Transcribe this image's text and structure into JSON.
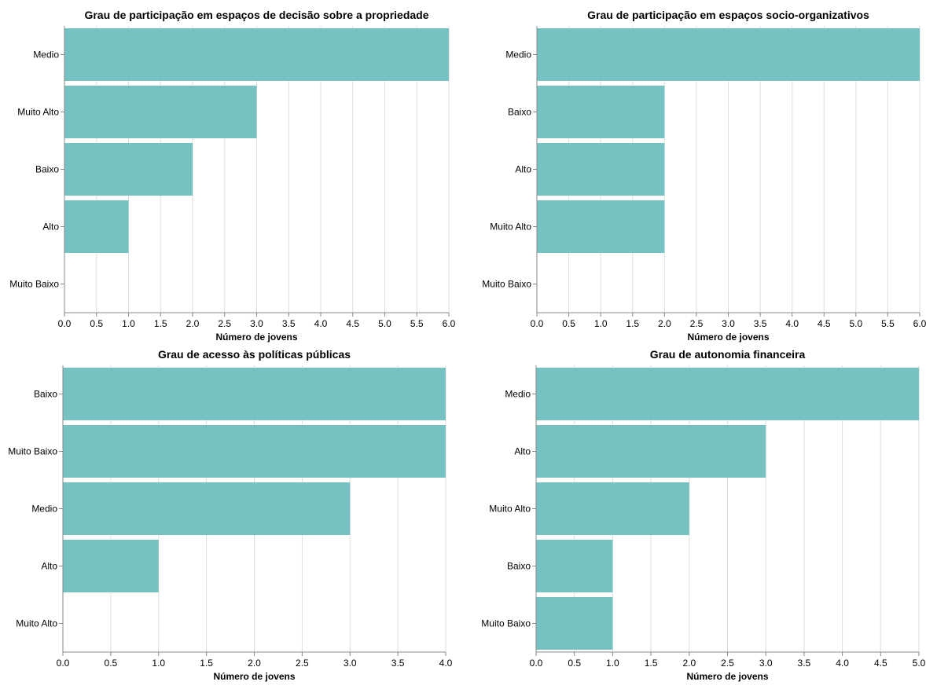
{
  "chart_data": [
    {
      "type": "bar",
      "orientation": "horizontal",
      "title": "Grau de participação em espaços de decisão sobre a propriedade",
      "xlabel": "Número de jovens",
      "ylabel": "",
      "categories": [
        "Medio",
        "Muito Alto",
        "Baixo",
        "Alto",
        "Muito Baixo"
      ],
      "values": [
        6,
        3,
        2,
        1,
        0
      ],
      "xlim": [
        0,
        6
      ],
      "xticks": [
        0,
        0.5,
        1,
        1.5,
        2,
        2.5,
        3,
        3.5,
        4,
        4.5,
        5,
        5.5,
        6
      ],
      "xtick_labels": [
        "0.0",
        "0.5",
        "1.0",
        "1.5",
        "2.0",
        "2.5",
        "3.0",
        "3.5",
        "4.0",
        "4.5",
        "5.0",
        "5.5",
        "6.0"
      ],
      "grid": true,
      "bar_color": "#76c1c1"
    },
    {
      "type": "bar",
      "orientation": "horizontal",
      "title": "Grau de participação em espaços socio-organizativos",
      "xlabel": "Número de jovens",
      "ylabel": "",
      "categories": [
        "Medio",
        "Baixo",
        "Alto",
        "Muito Alto",
        "Muito Baixo"
      ],
      "values": [
        6,
        2,
        2,
        2,
        0
      ],
      "xlim": [
        0,
        6
      ],
      "xticks": [
        0,
        0.5,
        1,
        1.5,
        2,
        2.5,
        3,
        3.5,
        4,
        4.5,
        5,
        5.5,
        6
      ],
      "xtick_labels": [
        "0.0",
        "0.5",
        "1.0",
        "1.5",
        "2.0",
        "2.5",
        "3.0",
        "3.5",
        "4.0",
        "4.5",
        "5.0",
        "5.5",
        "6.0"
      ],
      "grid": true,
      "bar_color": "#76c1c1"
    },
    {
      "type": "bar",
      "orientation": "horizontal",
      "title": "Grau de acesso às políticas públicas",
      "xlabel": "Número de jovens",
      "ylabel": "",
      "categories": [
        "Baixo",
        "Muito Baixo",
        "Medio",
        "Alto",
        "Muito Alto"
      ],
      "values": [
        4,
        4,
        3,
        1,
        0
      ],
      "xlim": [
        0,
        4
      ],
      "xticks": [
        0,
        0.5,
        1,
        1.5,
        2,
        2.5,
        3,
        3.5,
        4
      ],
      "xtick_labels": [
        "0.0",
        "0.5",
        "1.0",
        "1.5",
        "2.0",
        "2.5",
        "3.0",
        "3.5",
        "4.0"
      ],
      "grid": true,
      "bar_color": "#76c1c1"
    },
    {
      "type": "bar",
      "orientation": "horizontal",
      "title": "Grau de autonomia financeira",
      "xlabel": "Número de jovens",
      "ylabel": "",
      "categories": [
        "Medio",
        "Alto",
        "Muito Alto",
        "Baixo",
        "Muito Baixo"
      ],
      "values": [
        5,
        3,
        2,
        1,
        1
      ],
      "xlim": [
        0,
        5
      ],
      "xticks": [
        0,
        0.5,
        1,
        1.5,
        2,
        2.5,
        3,
        3.5,
        4,
        4.5,
        5
      ],
      "xtick_labels": [
        "0.0",
        "0.5",
        "1.0",
        "1.5",
        "2.0",
        "2.5",
        "3.0",
        "3.5",
        "4.0",
        "4.5",
        "5.0"
      ],
      "grid": true,
      "bar_color": "#76c1c1"
    }
  ]
}
